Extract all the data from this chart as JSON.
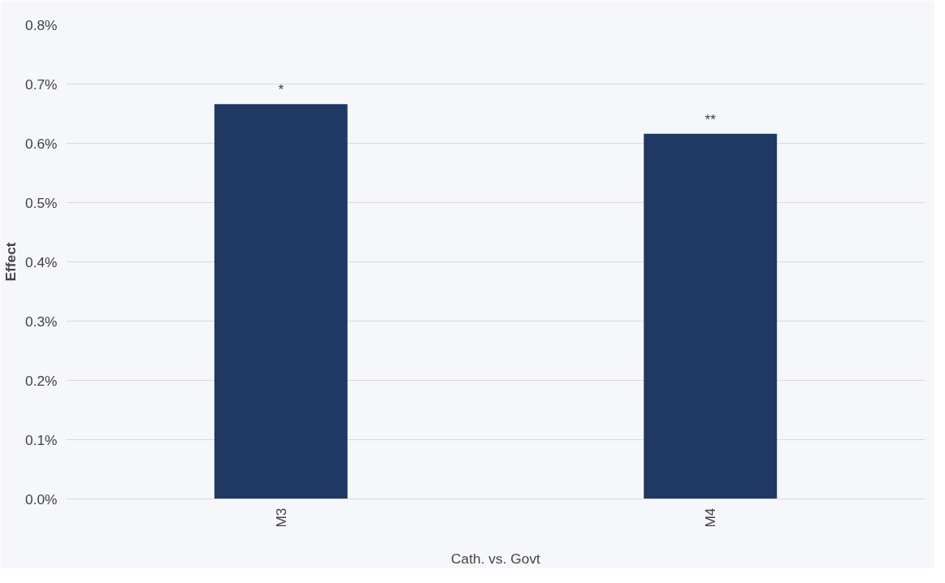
{
  "chart_data": {
    "type": "bar",
    "categories": [
      "M3",
      "M4"
    ],
    "values": [
      0.666,
      0.616
    ],
    "color": "#203864",
    "ylabel": "Effect",
    "xlabel": "Cath. vs. Govt",
    "ylim": [
      0,
      0.8
    ],
    "yticks": [
      {
        "value": 0,
        "label": "0.0%"
      },
      {
        "value": 0.1,
        "label": "0.1%"
      },
      {
        "value": 0.2,
        "label": "0.2%"
      },
      {
        "value": 0.3,
        "label": "0.3%"
      },
      {
        "value": 0.4,
        "label": "0.4%"
      },
      {
        "value": 0.5,
        "label": "0.5%"
      },
      {
        "value": 0.6,
        "label": "0.6%"
      },
      {
        "value": 0.7,
        "label": "0.7%"
      },
      {
        "value": 0.8,
        "label": "0.8%"
      }
    ],
    "grid": "y",
    "annotations": [
      {
        "text": "*",
        "x": "M3",
        "y": 0.666
      },
      {
        "text": "**",
        "x": "M4",
        "y": 0.616
      }
    ]
  }
}
